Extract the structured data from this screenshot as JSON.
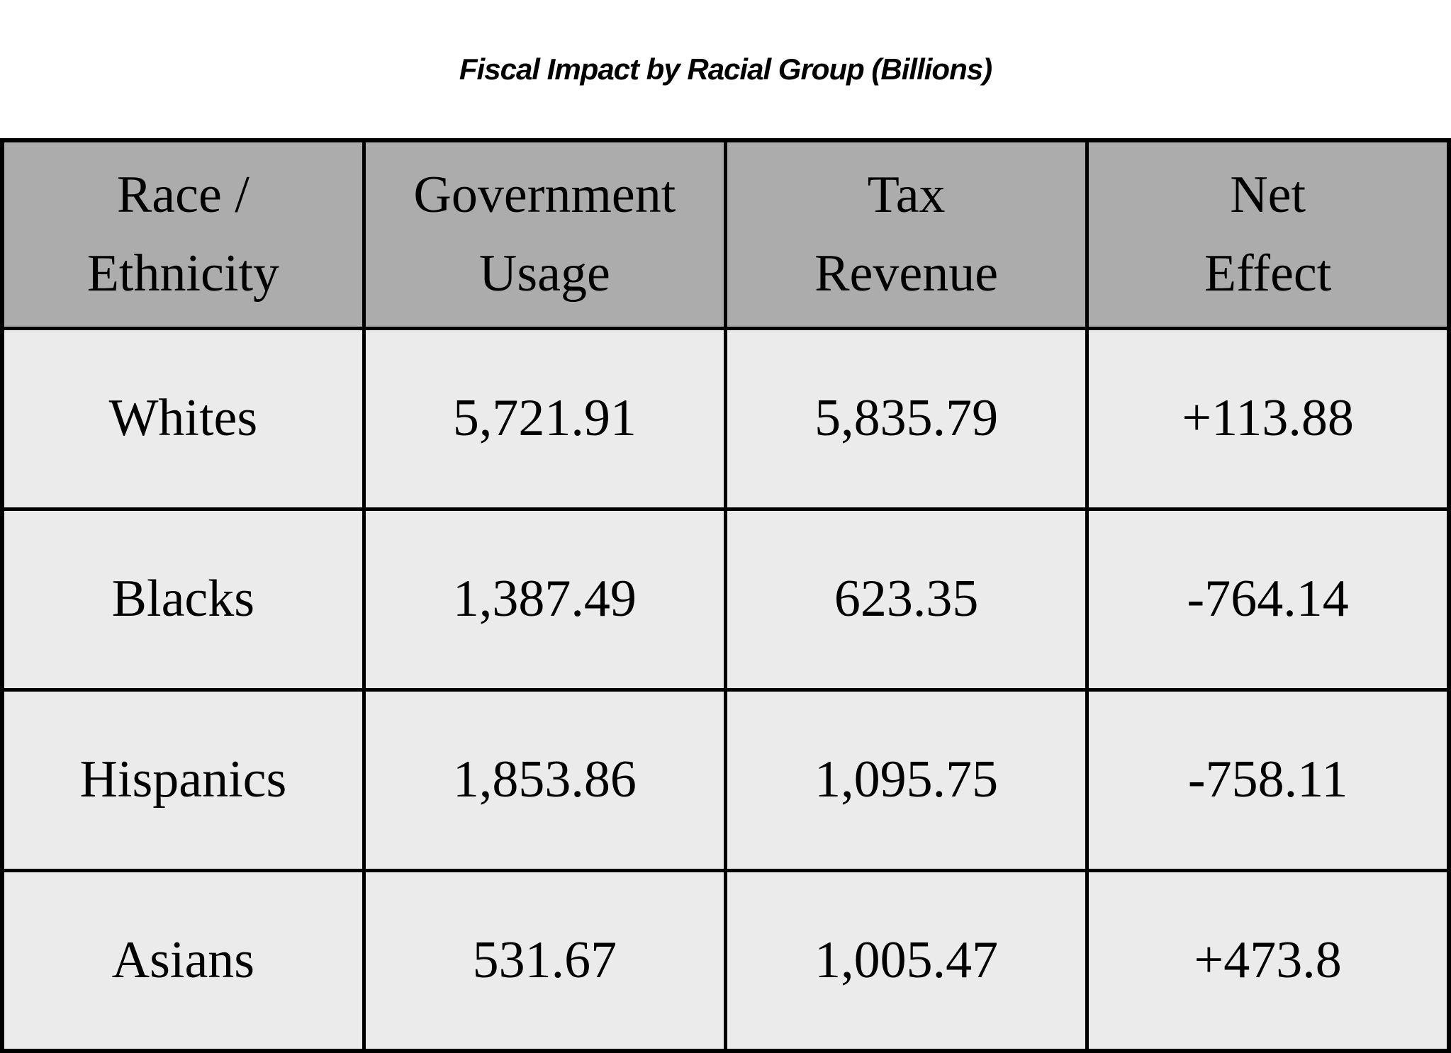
{
  "title": "Fiscal Impact by Racial Group (Billions)",
  "colors": {
    "page_bg": "#ffffff",
    "header_bg": "#acacac",
    "cell_bg": "#ebebeb",
    "border": "#000000",
    "text": "#000000"
  },
  "table": {
    "headers": [
      "Race /\nEthnicity",
      "Government\nUsage",
      "Tax\nRevenue",
      "Net\nEffect"
    ],
    "rows": [
      [
        "Whites",
        "5,721.91",
        "5,835.79",
        "+113.88"
      ],
      [
        "Blacks",
        "1,387.49",
        "623.35",
        "-764.14"
      ],
      [
        "Hispanics",
        "1,853.86",
        "1,095.75",
        "-758.11"
      ],
      [
        "Asians",
        "531.67",
        "1,005.47",
        "+473.8"
      ]
    ]
  },
  "chart_data": {
    "type": "table",
    "title": "Fiscal Impact by Racial Group (Billions)",
    "units": "billions",
    "columns": [
      "Race / Ethnicity",
      "Government Usage",
      "Tax Revenue",
      "Net Effect"
    ],
    "categories": [
      "Whites",
      "Blacks",
      "Hispanics",
      "Asians"
    ],
    "series": [
      {
        "name": "Government Usage",
        "values": [
          5721.91,
          1387.49,
          1853.86,
          531.67
        ]
      },
      {
        "name": "Tax Revenue",
        "values": [
          5835.79,
          623.35,
          1095.75,
          1005.47
        ]
      },
      {
        "name": "Net Effect",
        "values": [
          113.88,
          -764.14,
          -758.11,
          473.8
        ]
      }
    ]
  }
}
